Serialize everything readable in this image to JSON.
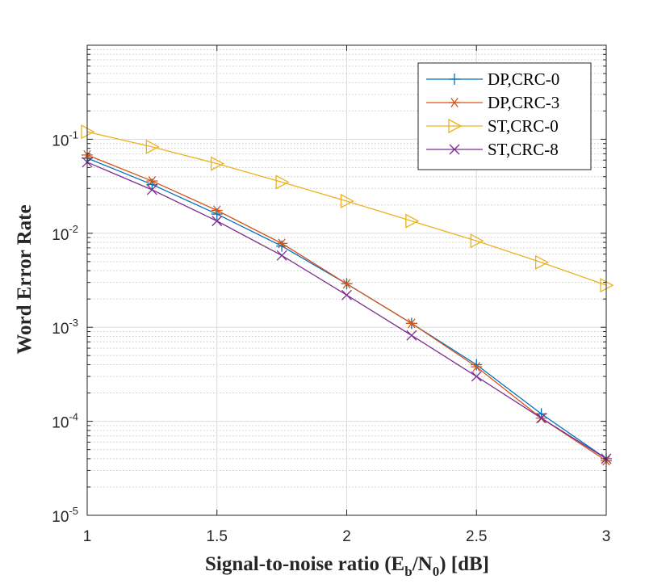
{
  "chart_data": {
    "type": "line",
    "title": "",
    "xlabel": {
      "prefix": "Signal-to-noise ratio (E",
      "sub1": "b",
      "mid": "/N",
      "sub2": "0",
      "suffix": ") [dB]"
    },
    "ylabel": "Word  Error  Rate",
    "xlim": [
      1,
      3
    ],
    "ylim": [
      1e-05,
      1
    ],
    "yscale": "log",
    "grid": true,
    "minor_grid": true,
    "legend_position": "top-right",
    "x_ticks": [
      {
        "value": 1,
        "label": "1"
      },
      {
        "value": 1.5,
        "label": "1.5"
      },
      {
        "value": 2,
        "label": "2"
      },
      {
        "value": 2.5,
        "label": "2.5"
      },
      {
        "value": 3,
        "label": "3"
      }
    ],
    "y_ticks": [
      {
        "value": 1e-05,
        "base": "10",
        "exp": "-5"
      },
      {
        "value": 0.0001,
        "base": "10",
        "exp": "-4"
      },
      {
        "value": 0.001,
        "base": "10",
        "exp": "-3"
      },
      {
        "value": 0.01,
        "base": "10",
        "exp": "-2"
      },
      {
        "value": 0.1,
        "base": "10",
        "exp": "-1"
      }
    ],
    "series": [
      {
        "name": "DP,CRC-0",
        "color": "#0072BD",
        "marker": "plus",
        "x": [
          1,
          1.25,
          1.5,
          1.75,
          2,
          2.25,
          2.5,
          2.75,
          3
        ],
        "y": [
          0.063,
          0.033,
          0.016,
          0.0073,
          0.0029,
          0.0011,
          0.0004,
          0.00012,
          4e-05
        ]
      },
      {
        "name": "DP,CRC-3",
        "color": "#D95319",
        "marker": "asterisk",
        "x": [
          1,
          1.25,
          1.5,
          1.75,
          2,
          2.25,
          2.5,
          2.75,
          3
        ],
        "y": [
          0.068,
          0.036,
          0.0175,
          0.0078,
          0.0029,
          0.0011,
          0.00038,
          0.000108,
          3.8e-05
        ]
      },
      {
        "name": "ST,CRC-0",
        "color": "#EDB120",
        "marker": "triangle-right",
        "x": [
          1,
          1.25,
          1.5,
          1.75,
          2,
          2.25,
          2.5,
          2.75,
          3
        ],
        "y": [
          0.12,
          0.083,
          0.055,
          0.035,
          0.022,
          0.0135,
          0.0083,
          0.0049,
          0.0028
        ]
      },
      {
        "name": "ST,CRC-8",
        "color": "#7E2F8E",
        "marker": "x",
        "x": [
          1,
          1.25,
          1.5,
          1.75,
          2,
          2.25,
          2.5,
          2.75,
          3
        ],
        "y": [
          0.057,
          0.029,
          0.0135,
          0.0058,
          0.0022,
          0.00082,
          0.0003,
          0.000108,
          4e-05
        ]
      }
    ]
  }
}
